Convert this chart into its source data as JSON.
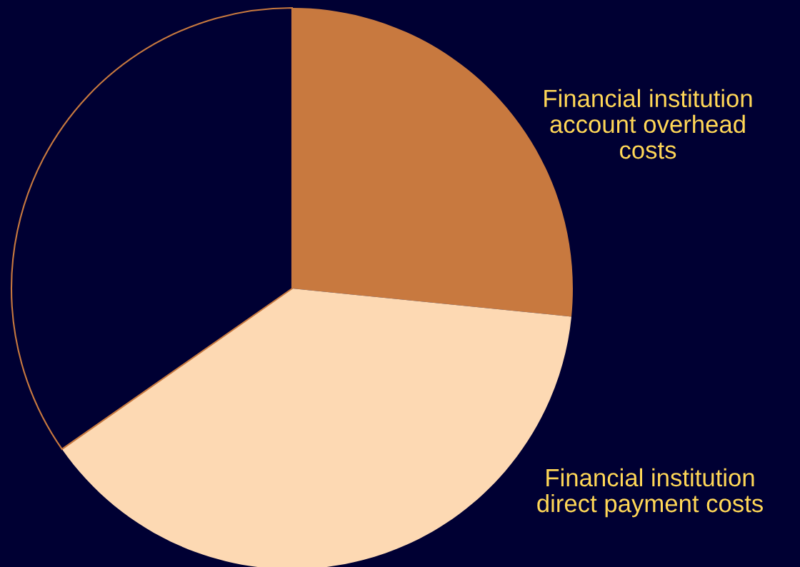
{
  "chart_data": {
    "type": "pie",
    "categories": [
      "Financial institution\naccount overhead\ncosts",
      "Financial institution\ndirect payment costs",
      null
    ],
    "values": [
      26.6,
      38.7,
      34.7
    ],
    "colors": [
      "#c8793f",
      "#fdd9b3",
      "#000033"
    ]
  }
}
